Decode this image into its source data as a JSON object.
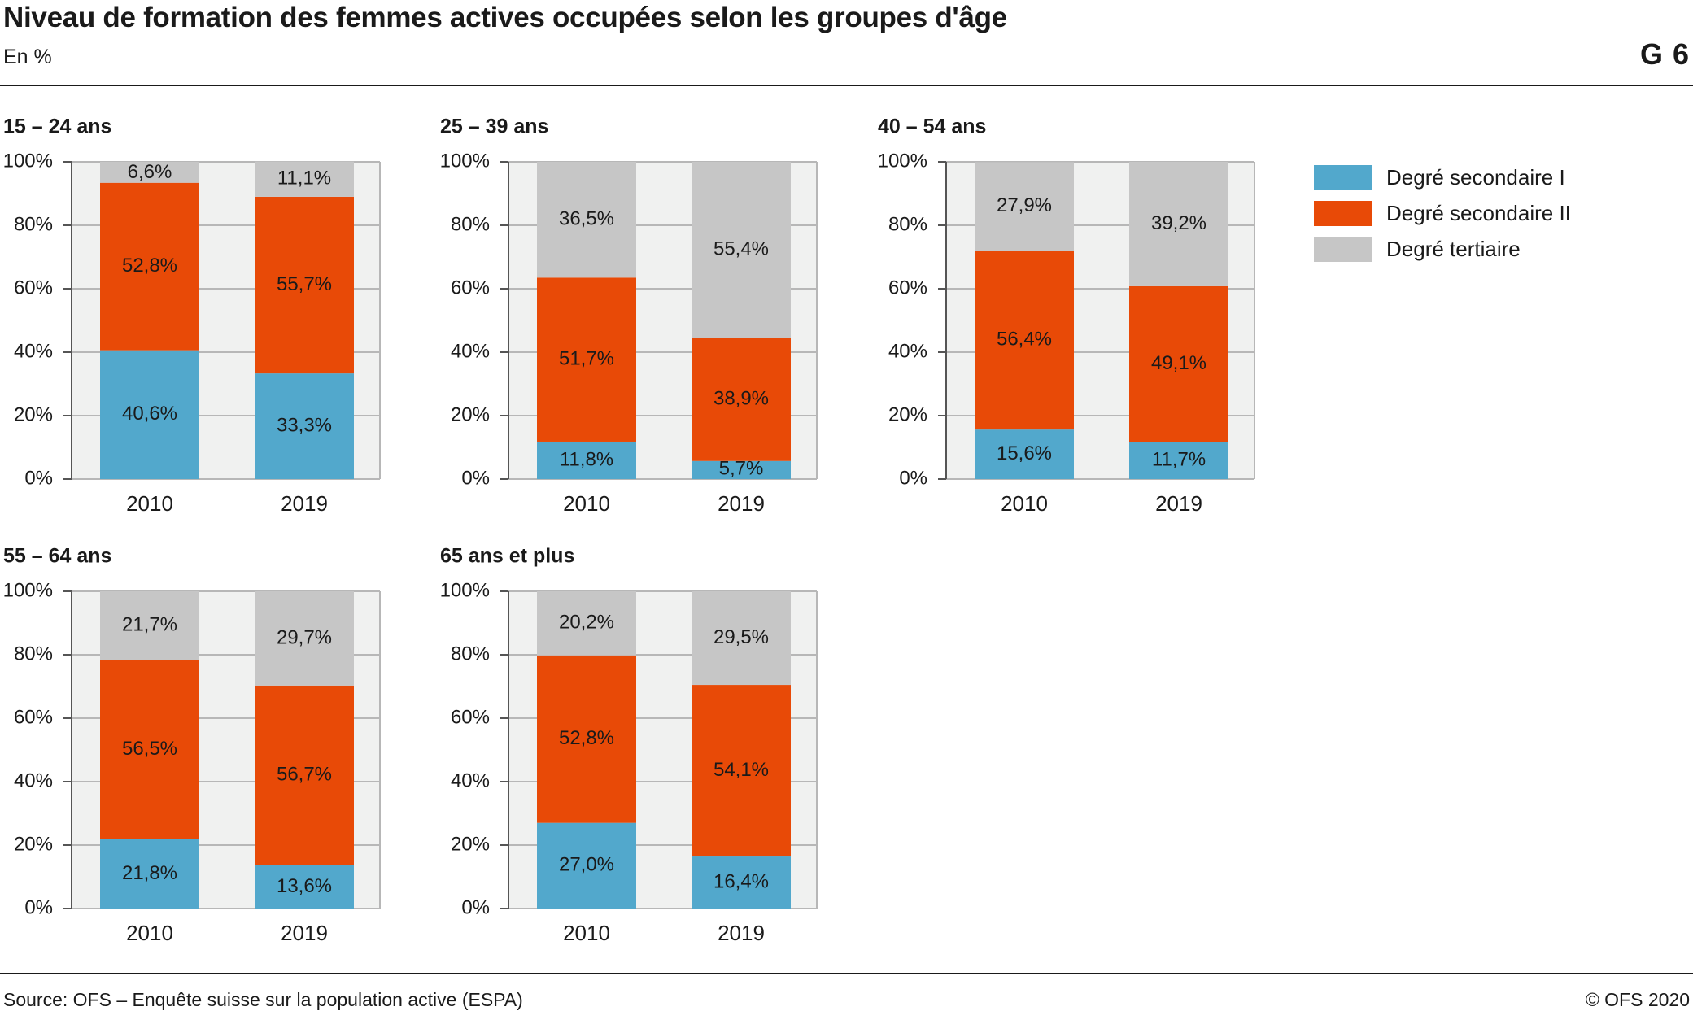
{
  "header": {
    "title": "Niveau de formation des femmes actives occupées selon les groupes d'âge",
    "subtitle": "En %",
    "chart_id": "G 6"
  },
  "footer": {
    "source": "Source: OFS – Enquête suisse sur la population active (ESPA)",
    "copyright": "© OFS 2020"
  },
  "legend": [
    {
      "label": "Degré secondaire I",
      "color": "#52a8cc"
    },
    {
      "label": "Degré secondaire II",
      "color": "#e84a07"
    },
    {
      "label": "Degré tertiaire",
      "color": "#c6c6c6"
    }
  ],
  "chart_data": [
    {
      "type": "bar",
      "stacked": true,
      "title": "15 – 24 ans",
      "categories": [
        "2010",
        "2019"
      ],
      "ylim": [
        0,
        100
      ],
      "ytick_labels": [
        "0%",
        "20%",
        "40%",
        "60%",
        "80%",
        "100%"
      ],
      "series": [
        {
          "name": "Degré secondaire I",
          "values": [
            40.6,
            33.3
          ],
          "labels": [
            "40,6%",
            "33,3%"
          ]
        },
        {
          "name": "Degré secondaire II",
          "values": [
            52.8,
            55.7
          ],
          "labels": [
            "52,8%",
            "55,7%"
          ]
        },
        {
          "name": "Degré tertiaire",
          "values": [
            6.6,
            11.1
          ],
          "labels": [
            "6,6%",
            "11,1%"
          ]
        }
      ]
    },
    {
      "type": "bar",
      "stacked": true,
      "title": "25 – 39 ans",
      "categories": [
        "2010",
        "2019"
      ],
      "ylim": [
        0,
        100
      ],
      "ytick_labels": [
        "0%",
        "20%",
        "40%",
        "60%",
        "80%",
        "100%"
      ],
      "series": [
        {
          "name": "Degré secondaire I",
          "values": [
            11.8,
            5.7
          ],
          "labels": [
            "11,8%",
            "5,7%"
          ]
        },
        {
          "name": "Degré secondaire II",
          "values": [
            51.7,
            38.9
          ],
          "labels": [
            "51,7%",
            "38,9%"
          ]
        },
        {
          "name": "Degré tertiaire",
          "values": [
            36.5,
            55.4
          ],
          "labels": [
            "36,5%",
            "55,4%"
          ]
        }
      ]
    },
    {
      "type": "bar",
      "stacked": true,
      "title": "40 – 54 ans",
      "categories": [
        "2010",
        "2019"
      ],
      "ylim": [
        0,
        100
      ],
      "ytick_labels": [
        "0%",
        "20%",
        "40%",
        "60%",
        "80%",
        "100%"
      ],
      "series": [
        {
          "name": "Degré secondaire I",
          "values": [
            15.6,
            11.7
          ],
          "labels": [
            "15,6%",
            "11,7%"
          ]
        },
        {
          "name": "Degré secondaire II",
          "values": [
            56.4,
            49.1
          ],
          "labels": [
            "56,4%",
            "49,1%"
          ]
        },
        {
          "name": "Degré tertiaire",
          "values": [
            27.9,
            39.2
          ],
          "labels": [
            "27,9%",
            "39,2%"
          ]
        }
      ]
    },
    {
      "type": "bar",
      "stacked": true,
      "title": "55 – 64 ans",
      "categories": [
        "2010",
        "2019"
      ],
      "ylim": [
        0,
        100
      ],
      "ytick_labels": [
        "0%",
        "20%",
        "40%",
        "60%",
        "80%",
        "100%"
      ],
      "series": [
        {
          "name": "Degré secondaire I",
          "values": [
            21.8,
            13.6
          ],
          "labels": [
            "21,8%",
            "13,6%"
          ]
        },
        {
          "name": "Degré secondaire II",
          "values": [
            56.5,
            56.7
          ],
          "labels": [
            "56,5%",
            "56,7%"
          ]
        },
        {
          "name": "Degré tertiaire",
          "values": [
            21.7,
            29.7
          ],
          "labels": [
            "21,7%",
            "29,7%"
          ]
        }
      ]
    },
    {
      "type": "bar",
      "stacked": true,
      "title": "65 ans et plus",
      "categories": [
        "2010",
        "2019"
      ],
      "ylim": [
        0,
        100
      ],
      "ytick_labels": [
        "0%",
        "20%",
        "40%",
        "60%",
        "80%",
        "100%"
      ],
      "series": [
        {
          "name": "Degré secondaire I",
          "values": [
            27.0,
            16.4
          ],
          "labels": [
            "27,0%",
            "16,4%"
          ]
        },
        {
          "name": "Degré secondaire II",
          "values": [
            52.8,
            54.1
          ],
          "labels": [
            "52,8%",
            "54,1%"
          ]
        },
        {
          "name": "Degré tertiaire",
          "values": [
            20.2,
            29.5
          ],
          "labels": [
            "20,2%",
            "29,5%"
          ]
        }
      ]
    }
  ]
}
